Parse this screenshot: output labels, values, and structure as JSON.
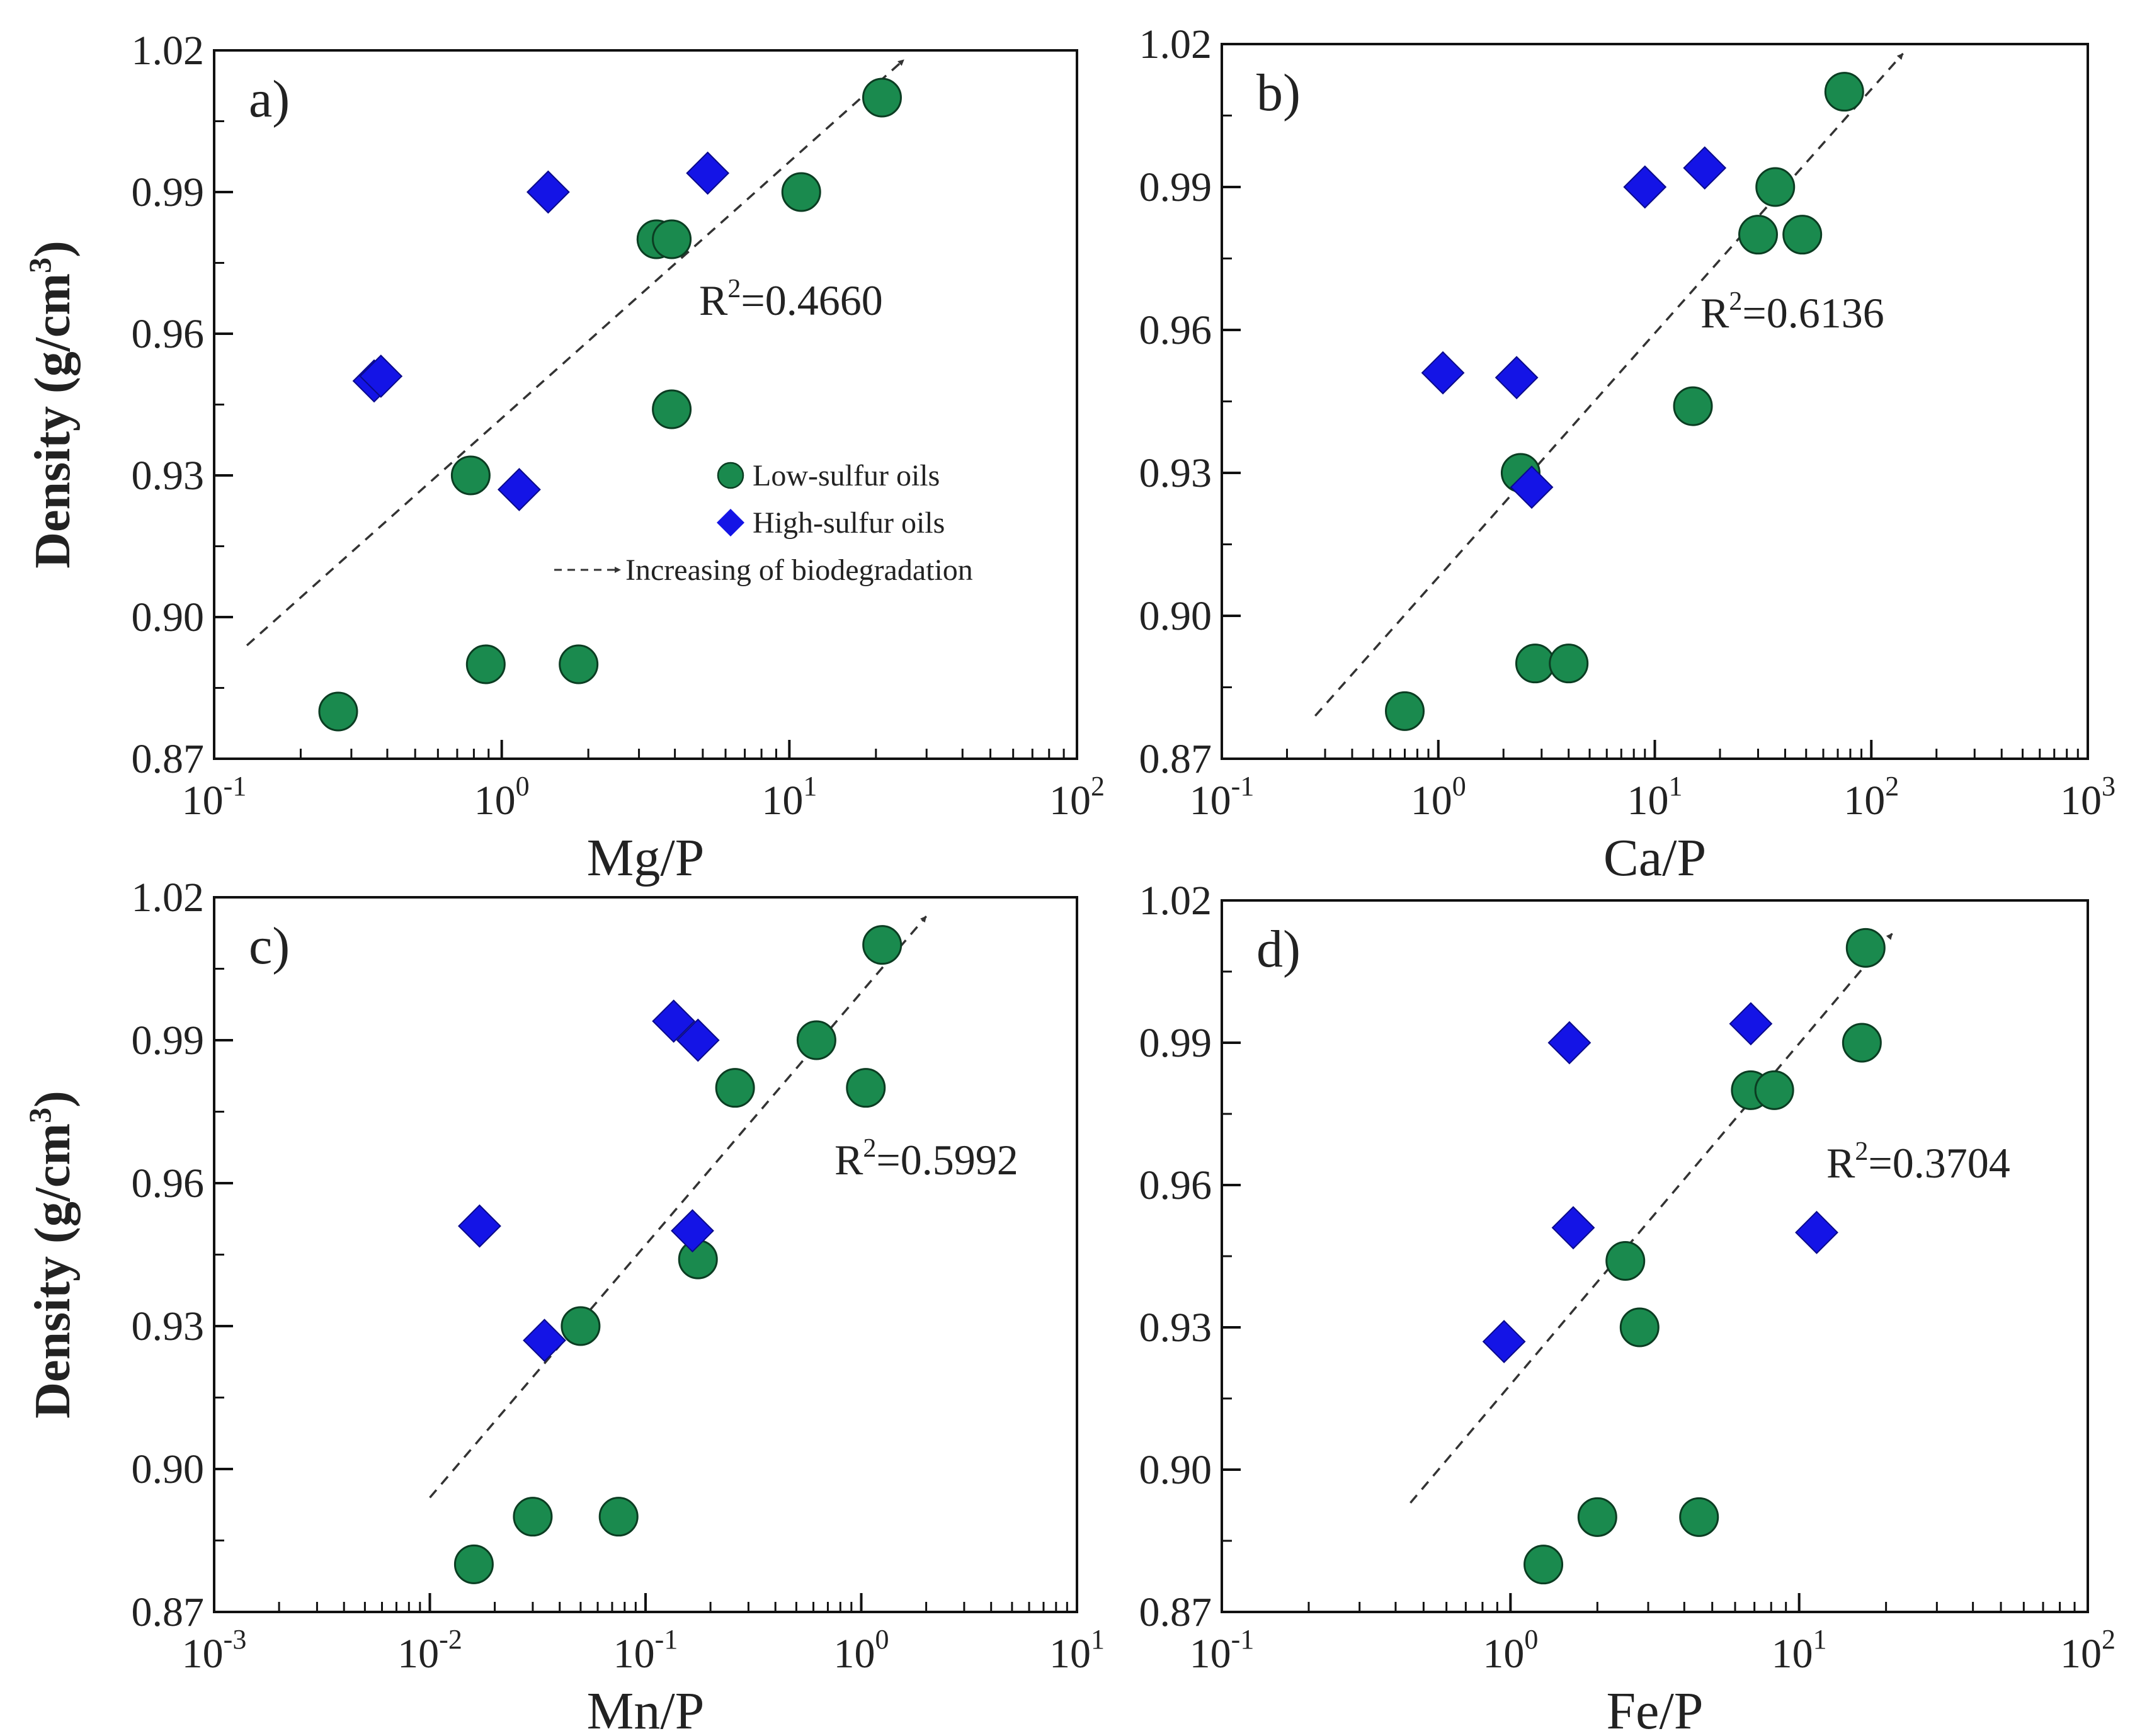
{
  "colors": {
    "low_sulfur": "#1a8a4e",
    "high_sulfur": "#1414e6",
    "axis": "#111111",
    "trend": "#333333"
  },
  "chart_data": [
    {
      "type": "scatter",
      "panel_label": "a)",
      "xlabel": "Mg/P",
      "ylabel": "Density (g/cm³)",
      "ylabel_parts": {
        "main": "Density (g/cm",
        "sup": "3",
        "close": ")"
      },
      "x_scale": "log",
      "xlim": [
        0.1,
        100
      ],
      "ylim": [
        0.87,
        1.02
      ],
      "x_ticks": [
        0.1,
        1,
        10,
        100
      ],
      "x_tick_labels": [
        {
          "base": "10",
          "exp": "-1"
        },
        {
          "base": "10",
          "exp": "0"
        },
        {
          "base": "10",
          "exp": "1"
        },
        {
          "base": "10",
          "exp": "2"
        }
      ],
      "y_ticks": [
        0.87,
        0.9,
        0.93,
        0.96,
        0.99,
        1.02
      ],
      "y_tick_labels": [
        "0.87",
        "0.90",
        "0.93",
        "0.96",
        "0.99",
        "1.02"
      ],
      "annotation": {
        "prefix": "R",
        "sup": "2",
        "value": "=0.4660"
      },
      "legend": {
        "position": "center-right",
        "entries": [
          "Low-sulfur oils",
          "High-sulfur oils",
          "Increasing of biodegradation"
        ]
      },
      "trend": {
        "x": [
          0.13,
          25
        ],
        "y": [
          0.894,
          1.018
        ]
      },
      "series": [
        {
          "name": "Low-sulfur oils",
          "marker": "circle",
          "x": [
            0.27,
            0.88,
            1.85,
            0.78,
            3.9,
            3.45,
            3.9,
            11,
            21
          ],
          "y": [
            0.88,
            0.89,
            0.89,
            0.93,
            0.944,
            0.98,
            0.98,
            0.99,
            1.01
          ]
        },
        {
          "name": "High-sulfur oils",
          "marker": "diamond",
          "x": [
            0.36,
            0.38,
            1.15,
            1.45,
            5.2
          ],
          "y": [
            0.95,
            0.951,
            0.927,
            0.99,
            0.994
          ]
        }
      ]
    },
    {
      "type": "scatter",
      "panel_label": "b)",
      "xlabel": "Ca/P",
      "x_scale": "log",
      "xlim": [
        0.1,
        1000
      ],
      "ylim": [
        0.87,
        1.02
      ],
      "x_ticks": [
        0.1,
        1,
        10,
        100,
        1000
      ],
      "x_tick_labels": [
        {
          "base": "10",
          "exp": "-1"
        },
        {
          "base": "10",
          "exp": "0"
        },
        {
          "base": "10",
          "exp": "1"
        },
        {
          "base": "10",
          "exp": "2"
        },
        {
          "base": "10",
          "exp": "3"
        }
      ],
      "y_ticks": [
        0.87,
        0.9,
        0.93,
        0.96,
        0.99,
        1.02
      ],
      "y_tick_labels": [
        "0.87",
        "0.90",
        "0.93",
        "0.96",
        "0.99",
        "1.02"
      ],
      "annotation": {
        "prefix": "R",
        "sup": "2",
        "value": "=0.6136"
      },
      "trend": {
        "x": [
          0.27,
          140
        ],
        "y": [
          0.879,
          1.018
        ]
      },
      "series": [
        {
          "name": "Low-sulfur oils",
          "marker": "circle",
          "x": [
            0.7,
            2.8,
            4.0,
            2.4,
            15,
            30,
            48,
            36,
            75
          ],
          "y": [
            0.88,
            0.89,
            0.89,
            0.93,
            0.944,
            0.98,
            0.98,
            0.99,
            1.01
          ]
        },
        {
          "name": "High-sulfur oils",
          "marker": "diamond",
          "x": [
            1.05,
            2.3,
            2.7,
            9.0,
            17
          ],
          "y": [
            0.951,
            0.95,
            0.927,
            0.99,
            0.994
          ]
        }
      ]
    },
    {
      "type": "scatter",
      "panel_label": "c)",
      "xlabel": "Mn/P",
      "ylabel": "Density (g/cm³)",
      "ylabel_parts": {
        "main": "Density (g/cm",
        "sup": "3",
        "close": ")"
      },
      "x_scale": "log",
      "xlim": [
        0.001,
        10
      ],
      "ylim": [
        0.87,
        1.02
      ],
      "x_ticks": [
        0.001,
        0.01,
        0.1,
        1,
        10
      ],
      "x_tick_labels": [
        {
          "base": "10",
          "exp": "-3"
        },
        {
          "base": "10",
          "exp": "-2"
        },
        {
          "base": "10",
          "exp": "-1"
        },
        {
          "base": "10",
          "exp": "0"
        },
        {
          "base": "10",
          "exp": "1"
        }
      ],
      "y_ticks": [
        0.87,
        0.9,
        0.93,
        0.96,
        0.99,
        1.02
      ],
      "y_tick_labels": [
        "0.87",
        "0.90",
        "0.93",
        "0.96",
        "0.99",
        "1.02"
      ],
      "annotation": {
        "prefix": "R",
        "sup": "2",
        "value": "=0.5992"
      },
      "trend": {
        "x": [
          0.01,
          2.0
        ],
        "y": [
          0.894,
          1.016
        ]
      },
      "series": [
        {
          "name": "Low-sulfur oils",
          "marker": "circle",
          "x": [
            0.016,
            0.03,
            0.075,
            0.05,
            0.175,
            0.26,
            1.05,
            0.62,
            1.25
          ],
          "y": [
            0.88,
            0.89,
            0.89,
            0.93,
            0.944,
            0.98,
            0.98,
            0.99,
            1.01
          ]
        },
        {
          "name": "High-sulfur oils",
          "marker": "diamond",
          "x": [
            0.017,
            0.034,
            0.165,
            0.175,
            0.135
          ],
          "y": [
            0.951,
            0.927,
            0.95,
            0.99,
            0.994
          ]
        }
      ]
    },
    {
      "type": "scatter",
      "panel_label": "d)",
      "xlabel": "Fe/P",
      "x_scale": "log",
      "xlim": [
        0.1,
        100
      ],
      "ylim": [
        0.87,
        1.02
      ],
      "x_ticks": [
        0.1,
        1,
        10,
        100
      ],
      "x_tick_labels": [
        {
          "base": "10",
          "exp": "-1"
        },
        {
          "base": "10",
          "exp": "0"
        },
        {
          "base": "10",
          "exp": "1"
        },
        {
          "base": "10",
          "exp": "2"
        }
      ],
      "y_ticks": [
        0.87,
        0.9,
        0.93,
        0.96,
        0.99,
        1.02
      ],
      "y_tick_labels": [
        "0.87",
        "0.90",
        "0.93",
        "0.96",
        "0.99",
        "1.02"
      ],
      "annotation": {
        "prefix": "R",
        "sup": "2",
        "value": "=0.3704"
      },
      "trend": {
        "x": [
          0.45,
          21
        ],
        "y": [
          0.893,
          1.013
        ]
      },
      "series": [
        {
          "name": "Low-sulfur oils",
          "marker": "circle",
          "x": [
            1.3,
            2.0,
            4.5,
            2.8,
            2.5,
            6.8,
            8.2,
            16.5,
            17
          ],
          "y": [
            0.88,
            0.89,
            0.89,
            0.93,
            0.944,
            0.98,
            0.98,
            0.99,
            1.01
          ]
        },
        {
          "name": "High-sulfur oils",
          "marker": "diamond",
          "x": [
            0.95,
            1.65,
            1.6,
            6.8,
            11.5
          ],
          "y": [
            0.927,
            0.951,
            0.99,
            0.994,
            0.95
          ]
        }
      ]
    }
  ]
}
